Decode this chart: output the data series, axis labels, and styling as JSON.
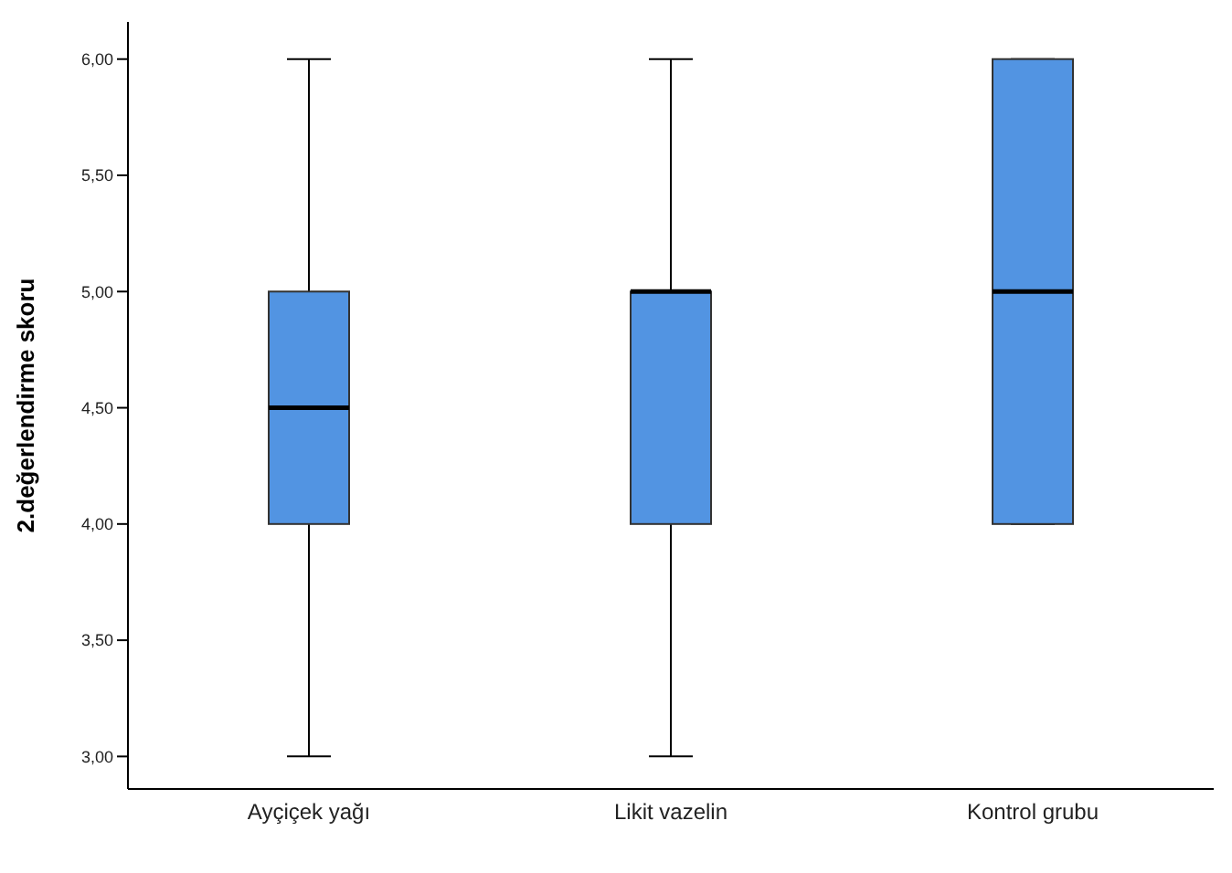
{
  "chart_data": {
    "type": "box",
    "ylabel": "2.değerlendirme skoru",
    "categories": [
      "Ayçiçek yağı",
      "Likit vazelin",
      "Kontrol grubu"
    ],
    "color": "#5294e2",
    "boxes": [
      {
        "low": 3,
        "q1": 4,
        "median": 4.5,
        "q3": 5,
        "high": 6
      },
      {
        "low": 3,
        "q1": 4,
        "median": 5,
        "q3": 5,
        "high": 6
      },
      {
        "low": 4,
        "q1": 4,
        "median": 5,
        "q3": 6,
        "high": 6
      }
    ],
    "ylim": [
      2.86,
      6.16
    ],
    "yticks": [
      {
        "value": 3,
        "label": "3,00"
      },
      {
        "value": 3.5,
        "label": "3,50"
      },
      {
        "value": 4,
        "label": "4,00"
      },
      {
        "value": 4.5,
        "label": "4,50"
      },
      {
        "value": 5,
        "label": "5,00"
      },
      {
        "value": 5.5,
        "label": "5,50"
      },
      {
        "value": 6,
        "label": "6,00"
      }
    ]
  }
}
